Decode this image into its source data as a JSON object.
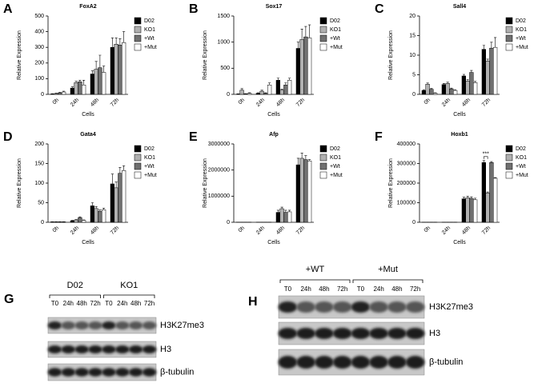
{
  "chart_data": [
    {
      "type": "bar",
      "panel_label": "A",
      "title": "FoxA2",
      "y_label": "Relative Expression",
      "x_label": "Cells",
      "categories": [
        "0h",
        "24h",
        "48h",
        "72h"
      ],
      "ylim": [
        0,
        500
      ],
      "yticks": [
        0,
        100,
        200,
        300,
        400,
        500
      ],
      "series": [
        {
          "name": "D02",
          "color": "#000000",
          "values": [
            2,
            40,
            130,
            300
          ],
          "errors": [
            2,
            8,
            20,
            60
          ]
        },
        {
          "name": "KO1",
          "color": "#b0b0b0",
          "values": [
            5,
            75,
            160,
            320
          ],
          "errors": [
            3,
            8,
            50,
            40
          ]
        },
        {
          "name": "+Wt",
          "color": "#707070",
          "values": [
            10,
            80,
            170,
            315
          ],
          "errors": [
            4,
            10,
            80,
            40
          ]
        },
        {
          "name": "+Mut",
          "color": "#ffffff",
          "values": [
            15,
            60,
            140,
            330
          ],
          "errors": [
            5,
            30,
            40,
            70
          ]
        }
      ]
    },
    {
      "type": "bar",
      "panel_label": "B",
      "title": "Sox17",
      "y_label": "Relative Expression",
      "x_label": "Cells",
      "categories": [
        "0h",
        "24h",
        "48h",
        "72h"
      ],
      "ylim": [
        0,
        1500
      ],
      "yticks": [
        0,
        500,
        1000,
        1500
      ],
      "series": [
        {
          "name": "D02",
          "color": "#000000",
          "values": [
            5,
            20,
            270,
            880
          ],
          "errors": [
            5,
            10,
            40,
            120
          ]
        },
        {
          "name": "KO1",
          "color": "#b0b0b0",
          "values": [
            80,
            60,
            80,
            1050
          ],
          "errors": [
            30,
            20,
            20,
            200
          ]
        },
        {
          "name": "+Wt",
          "color": "#707070",
          "values": [
            10,
            20,
            180,
            1100
          ],
          "errors": [
            5,
            10,
            40,
            200
          ]
        },
        {
          "name": "+Mut",
          "color": "#ffffff",
          "values": [
            20,
            180,
            270,
            1080
          ],
          "errors": [
            10,
            40,
            40,
            250
          ]
        }
      ]
    },
    {
      "type": "bar",
      "panel_label": "C",
      "title": "Sall4",
      "y_label": "Relative Expression",
      "x_label": "Cells",
      "categories": [
        "0h",
        "24h",
        "48h",
        "72h"
      ],
      "ylim": [
        0,
        20
      ],
      "yticks": [
        0,
        5,
        10,
        15,
        20
      ],
      "series": [
        {
          "name": "D02",
          "color": "#000000",
          "values": [
            1,
            2.5,
            4.7,
            11.5
          ],
          "errors": [
            0.2,
            0.3,
            0.4,
            1
          ]
        },
        {
          "name": "KO1",
          "color": "#b0b0b0",
          "values": [
            2.6,
            2.8,
            3.4,
            8.5
          ],
          "errors": [
            0.3,
            0.3,
            0.4,
            0.5
          ]
        },
        {
          "name": "+Wt",
          "color": "#707070",
          "values": [
            1.3,
            1.4,
            5.6,
            11.8
          ],
          "errors": [
            0.2,
            0.2,
            0.5,
            1.5
          ]
        },
        {
          "name": "+Mut",
          "color": "#ffffff",
          "values": [
            0.3,
            1,
            3,
            12
          ],
          "errors": [
            0.1,
            0.2,
            0.3,
            2.5
          ]
        }
      ]
    },
    {
      "type": "bar",
      "panel_label": "D",
      "title": "Gata4",
      "y_label": "Relative Expression",
      "x_label": "Cells",
      "categories": [
        "0h",
        "24h",
        "48h",
        "72h"
      ],
      "ylim": [
        0,
        200
      ],
      "yticks": [
        0,
        50,
        100,
        150,
        200
      ],
      "series": [
        {
          "name": "D02",
          "color": "#000000",
          "values": [
            1,
            4,
            42,
            98
          ],
          "errors": [
            0.5,
            1,
            8,
            25
          ]
        },
        {
          "name": "KO1",
          "color": "#b0b0b0",
          "values": [
            1,
            6,
            35,
            88
          ],
          "errors": [
            0.5,
            1,
            5,
            15
          ]
        },
        {
          "name": "+Wt",
          "color": "#707070",
          "values": [
            1,
            12,
            28,
            125
          ],
          "errors": [
            0.5,
            2,
            4,
            15
          ]
        },
        {
          "name": "+Mut",
          "color": "#ffffff",
          "values": [
            1,
            5,
            32,
            132
          ],
          "errors": [
            0.5,
            1,
            4,
            12
          ]
        }
      ]
    },
    {
      "type": "bar",
      "panel_label": "E",
      "title": "Afp",
      "y_label": "Relative Expression",
      "x_label": "Cells",
      "categories": [
        "0h",
        "24h",
        "48h",
        "72h"
      ],
      "ylim": [
        0,
        3000000
      ],
      "yticks": [
        0,
        1000000,
        2000000,
        3000000
      ],
      "series": [
        {
          "name": "D02",
          "color": "#000000",
          "values": [
            5000,
            5000,
            380000,
            2200000
          ],
          "errors": [
            1000,
            1000,
            80000,
            250000
          ]
        },
        {
          "name": "KO1",
          "color": "#b0b0b0",
          "values": [
            5000,
            5000,
            520000,
            2450000
          ],
          "errors": [
            1000,
            1000,
            60000,
            200000
          ]
        },
        {
          "name": "+Wt",
          "color": "#707070",
          "values": [
            5000,
            5000,
            380000,
            2400000
          ],
          "errors": [
            1000,
            1000,
            80000,
            150000
          ]
        },
        {
          "name": "+Mut",
          "color": "#ffffff",
          "values": [
            5000,
            5000,
            400000,
            2350000
          ],
          "errors": [
            1000,
            1000,
            60000,
            50000
          ]
        }
      ]
    },
    {
      "type": "bar",
      "panel_label": "F",
      "title": "Hoxb1",
      "y_label": "Relative Expression",
      "x_label": "Cells",
      "categories": [
        "0h",
        "24h",
        "48h",
        "72h"
      ],
      "ylim": [
        0,
        400000
      ],
      "yticks": [
        0,
        100000,
        200000,
        300000,
        400000
      ],
      "annotation": "***",
      "series": [
        {
          "name": "D02",
          "color": "#000000",
          "values": [
            500,
            500,
            120000,
            305000
          ],
          "errors": [
            100,
            100,
            8000,
            10000
          ]
        },
        {
          "name": "KO1",
          "color": "#b0b0b0",
          "values": [
            500,
            500,
            125000,
            150000
          ],
          "errors": [
            100,
            100,
            8000,
            5000
          ]
        },
        {
          "name": "+Wt",
          "color": "#707070",
          "values": [
            500,
            500,
            122000,
            305000
          ],
          "errors": [
            100,
            100,
            8000,
            5000
          ]
        },
        {
          "name": "+Mut",
          "color": "#ffffff",
          "values": [
            500,
            500,
            115000,
            225000
          ],
          "errors": [
            100,
            100,
            8000,
            3000
          ]
        }
      ]
    }
  ],
  "blots": [
    {
      "panel_label": "G",
      "groups": [
        "D02",
        "KO1"
      ],
      "lanes": [
        "T0",
        "24h",
        "48h",
        "72h",
        "T0",
        "24h",
        "48h",
        "72h"
      ],
      "rows": [
        "H3K27me3",
        "H3",
        "β-tubulin"
      ]
    },
    {
      "panel_label": "H",
      "groups": [
        "+WT",
        "+Mut"
      ],
      "lanes": [
        "T0",
        "24h",
        "48h",
        "72h",
        "T0",
        "24h",
        "48h",
        "72h"
      ],
      "rows": [
        "H3K27me3",
        "H3",
        "β-tubulin"
      ]
    }
  ]
}
